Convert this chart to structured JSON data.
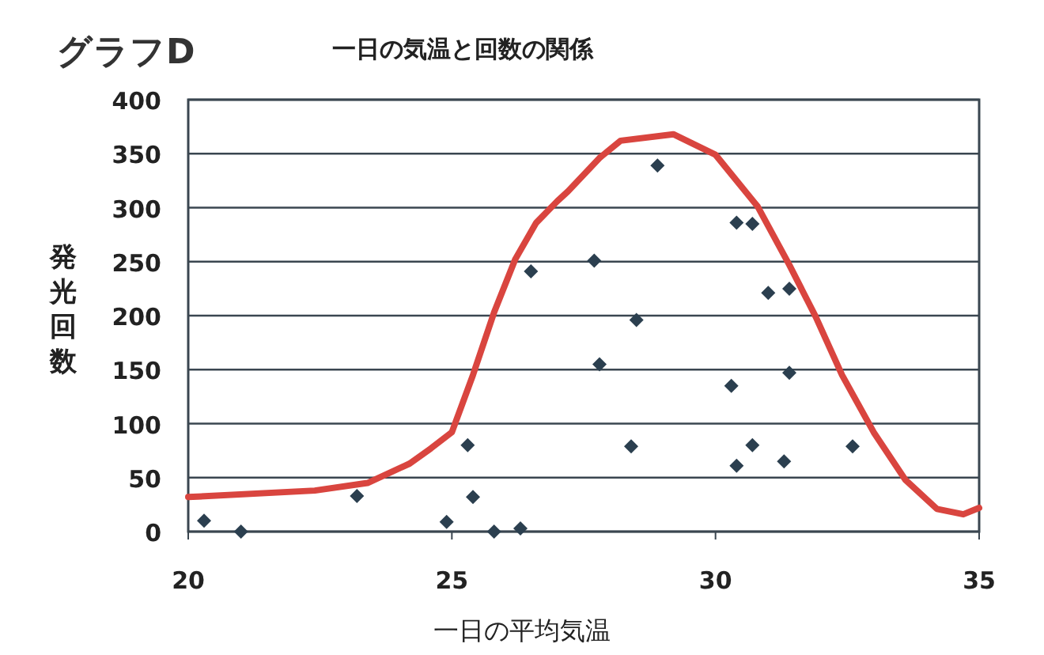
{
  "chart_data": {
    "type": "scatter",
    "title": "グラフD",
    "subtitle": "一日の気温と回数の関係",
    "xlabel": "一日の平均気温",
    "ylabel": "発光回数",
    "xlim": [
      20,
      35
    ],
    "ylim": [
      0,
      400
    ],
    "xticks": [
      20,
      25,
      30,
      35
    ],
    "yticks": [
      0,
      50,
      100,
      150,
      200,
      250,
      300,
      350,
      400
    ],
    "grid": "y",
    "series": [
      {
        "color": "#2b3f4f",
        "marker": "diamond",
        "x": [
          20.3,
          21.0,
          23.2,
          24.9,
          25.3,
          25.4,
          25.8,
          26.3,
          26.5,
          27.7,
          27.8,
          28.9,
          28.5,
          28.4,
          30.3,
          30.4,
          30.7,
          31.0,
          31.4,
          31.4,
          30.4,
          30.7,
          31.3,
          32.6
        ],
        "values": [
          10,
          0,
          33,
          9,
          80,
          32,
          0,
          3,
          241,
          251,
          155,
          339,
          196,
          79,
          135,
          286,
          285,
          221,
          225,
          147,
          61,
          80,
          65,
          79
        ]
      },
      {
        "type": "line",
        "color": "#d9453f",
        "marker": "none",
        "line_style": "solid",
        "x": [
          20.0,
          22.4,
          23.4,
          24.2,
          24.6,
          25.0,
          25.4,
          25.8,
          26.2,
          26.6,
          27.0,
          27.2,
          27.8,
          28.2,
          29.2,
          30.0,
          30.8,
          31.4,
          31.9,
          32.4,
          33.0,
          33.6,
          34.2,
          34.7,
          35.0
        ],
        "values": [
          32,
          38,
          45,
          63,
          77,
          92,
          145,
          203,
          252,
          286,
          306,
          315,
          346,
          362,
          368,
          349,
          301,
          247,
          199,
          145,
          92,
          48,
          21,
          16,
          22
        ]
      }
    ]
  }
}
